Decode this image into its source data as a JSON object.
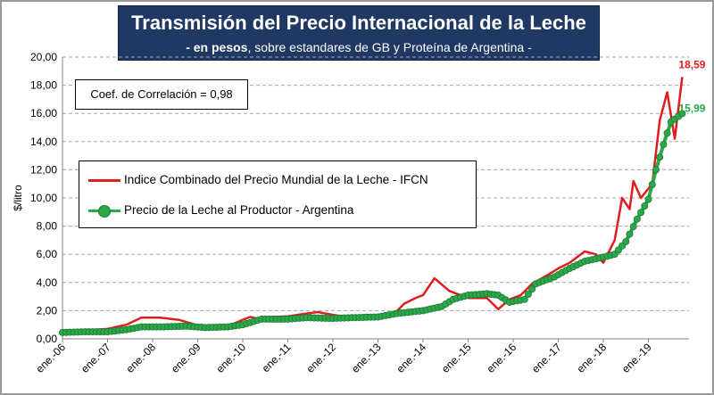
{
  "title": "Transmisión del Precio Internacional de la Leche",
  "subtitle_bold": "- en pesos",
  "subtitle_rest": ", sobre estandares de GB y Proteína de  Argentina -",
  "correlation_label": "Coef. de Correlación = 0,98",
  "colors": {
    "ifcn": "#e01e1e",
    "producer": "#2aa84a",
    "title_bg": "#1f3864"
  },
  "chart_data": {
    "type": "line",
    "title": "Transmisión del Precio Internacional de la Leche",
    "subtitle": "- en pesos, sobre estandares de GB y Proteína de  Argentina -",
    "ylabel": "$/litro",
    "xlabel": "",
    "ylim": [
      0,
      20
    ],
    "yticks": [
      "0,00",
      "2,00",
      "4,00",
      "6,00",
      "8,00",
      "10,00",
      "12,00",
      "14,00",
      "16,00",
      "18,00",
      "20,00"
    ],
    "xticks": [
      "ene.-06",
      "ene.-07",
      "ene.-08",
      "ene.-09",
      "ene.-10",
      "ene.-11",
      "ene.-12",
      "ene.-13",
      "ene.-14",
      "ene.-15",
      "ene.-16",
      "ene.-17",
      "ene.-18",
      "ene.-19"
    ],
    "grid": true,
    "legend_position": "center-left",
    "series": [
      {
        "name": "Indice Combinado del Precio Mundial de la Leche - IFCN",
        "color": "#e01e1e",
        "marker": "none",
        "end_label": "18,59",
        "points": [
          [
            "2006-01",
            0.55
          ],
          [
            "2006-07",
            0.6
          ],
          [
            "2007-01",
            0.7
          ],
          [
            "2007-06",
            1.0
          ],
          [
            "2007-10",
            1.5
          ],
          [
            "2008-03",
            1.5
          ],
          [
            "2008-08",
            1.35
          ],
          [
            "2009-01",
            0.95
          ],
          [
            "2009-06",
            0.85
          ],
          [
            "2009-10",
            1.0
          ],
          [
            "2010-01",
            1.35
          ],
          [
            "2010-03",
            1.55
          ],
          [
            "2010-06",
            1.35
          ],
          [
            "2010-09",
            1.55
          ],
          [
            "2011-01",
            1.6
          ],
          [
            "2011-06",
            1.8
          ],
          [
            "2011-09",
            1.9
          ],
          [
            "2012-01",
            1.7
          ],
          [
            "2012-06",
            1.5
          ],
          [
            "2012-10",
            1.7
          ],
          [
            "2013-01",
            1.6
          ],
          [
            "2013-05",
            1.7
          ],
          [
            "2013-08",
            2.5
          ],
          [
            "2013-11",
            2.9
          ],
          [
            "2014-01",
            3.1
          ],
          [
            "2014-04",
            4.3
          ],
          [
            "2014-08",
            3.4
          ],
          [
            "2015-01",
            2.9
          ],
          [
            "2015-06",
            2.9
          ],
          [
            "2015-09",
            2.1
          ],
          [
            "2015-12",
            2.8
          ],
          [
            "2016-03",
            3.1
          ],
          [
            "2016-06",
            3.9
          ],
          [
            "2016-10",
            4.5
          ],
          [
            "2017-01",
            5.0
          ],
          [
            "2017-04",
            5.4
          ],
          [
            "2017-08",
            6.2
          ],
          [
            "2017-11",
            6.0
          ],
          [
            "2018-01",
            5.4
          ],
          [
            "2018-04",
            7.0
          ],
          [
            "2018-06",
            10.0
          ],
          [
            "2018-08",
            9.2
          ],
          [
            "2018-09",
            11.2
          ],
          [
            "2018-11",
            10.0
          ],
          [
            "2019-02",
            11.0
          ],
          [
            "2019-04",
            15.5
          ],
          [
            "2019-06",
            17.5
          ],
          [
            "2019-08",
            14.2
          ],
          [
            "2019-10",
            18.59
          ]
        ]
      },
      {
        "name": "Precio de la Leche al Productor - Argentina",
        "color": "#2aa84a",
        "marker": "circle",
        "end_label": "15,99",
        "points": [
          [
            "2006-01",
            0.45
          ],
          [
            "2006-07",
            0.5
          ],
          [
            "2007-01",
            0.5
          ],
          [
            "2007-06",
            0.65
          ],
          [
            "2007-10",
            0.85
          ],
          [
            "2008-04",
            0.85
          ],
          [
            "2008-10",
            0.9
          ],
          [
            "2009-03",
            0.8
          ],
          [
            "2009-09",
            0.85
          ],
          [
            "2010-01",
            1.0
          ],
          [
            "2010-06",
            1.4
          ],
          [
            "2011-01",
            1.4
          ],
          [
            "2011-06",
            1.5
          ],
          [
            "2012-01",
            1.45
          ],
          [
            "2012-06",
            1.5
          ],
          [
            "2013-01",
            1.55
          ],
          [
            "2013-06",
            1.8
          ],
          [
            "2014-01",
            2.0
          ],
          [
            "2014-06",
            2.3
          ],
          [
            "2014-09",
            2.8
          ],
          [
            "2015-01",
            3.1
          ],
          [
            "2015-06",
            3.2
          ],
          [
            "2015-09",
            3.1
          ],
          [
            "2015-12",
            2.6
          ],
          [
            "2016-04",
            2.8
          ],
          [
            "2016-07",
            3.9
          ],
          [
            "2016-12",
            4.4
          ],
          [
            "2017-04",
            5.0
          ],
          [
            "2017-08",
            5.5
          ],
          [
            "2018-01",
            5.8
          ],
          [
            "2018-04",
            6.0
          ],
          [
            "2018-07",
            6.9
          ],
          [
            "2018-10",
            8.5
          ],
          [
            "2019-01",
            9.9
          ],
          [
            "2019-03",
            12.0
          ],
          [
            "2019-05",
            13.8
          ],
          [
            "2019-07",
            15.4
          ],
          [
            "2019-10",
            15.99
          ]
        ]
      }
    ]
  }
}
